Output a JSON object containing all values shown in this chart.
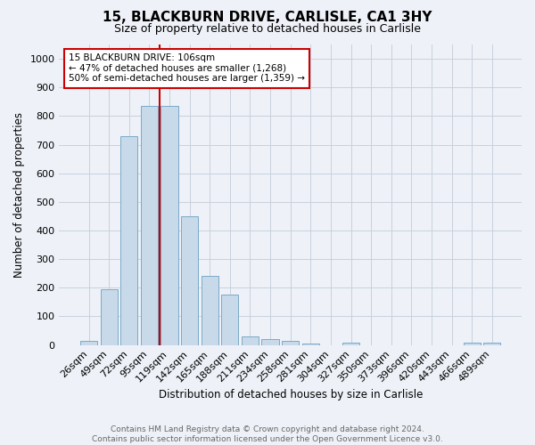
{
  "title1": "15, BLACKBURN DRIVE, CARLISLE, CA1 3HY",
  "title2": "Size of property relative to detached houses in Carlisle",
  "xlabel": "Distribution of detached houses by size in Carlisle",
  "ylabel": "Number of detached properties",
  "categories": [
    "26sqm",
    "49sqm",
    "72sqm",
    "95sqm",
    "119sqm",
    "142sqm",
    "165sqm",
    "188sqm",
    "211sqm",
    "234sqm",
    "258sqm",
    "281sqm",
    "304sqm",
    "327sqm",
    "350sqm",
    "373sqm",
    "396sqm",
    "420sqm",
    "443sqm",
    "466sqm",
    "489sqm"
  ],
  "values": [
    15,
    195,
    730,
    835,
    835,
    450,
    240,
    175,
    30,
    20,
    15,
    5,
    0,
    8,
    0,
    0,
    0,
    0,
    0,
    8,
    8
  ],
  "bar_color": "#c8d9ea",
  "bar_edge_color": "#7aaac8",
  "vline_x": 3.5,
  "vline_color": "#cc0000",
  "annotation_text": "15 BLACKBURN DRIVE: 106sqm\n← 47% of detached houses are smaller (1,268)\n50% of semi-detached houses are larger (1,359) →",
  "annotation_box_color": "#ffffff",
  "annotation_box_edge": "#cc0000",
  "ylim": [
    0,
    1050
  ],
  "yticks": [
    0,
    100,
    200,
    300,
    400,
    500,
    600,
    700,
    800,
    900,
    1000
  ],
  "footer_text": "Contains HM Land Registry data © Crown copyright and database right 2024.\nContains public sector information licensed under the Open Government Licence v3.0.",
  "grid_color": "#c8d0dc",
  "bg_color": "#eef2f8",
  "title1_fontsize": 11,
  "title2_fontsize": 9,
  "xlabel_fontsize": 8.5,
  "ylabel_fontsize": 8.5,
  "tick_fontsize": 8,
  "annotation_fontsize": 7.5,
  "footer_fontsize": 6.5,
  "footer_color": "#666666"
}
